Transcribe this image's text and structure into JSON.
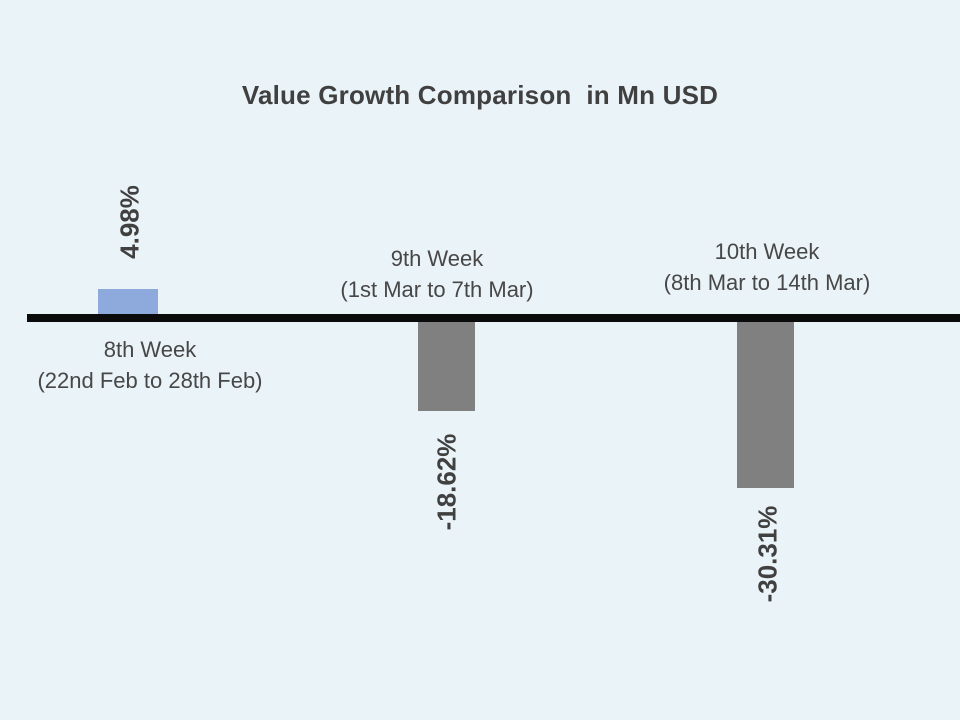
{
  "page": {
    "background_color": "#EAF3F8",
    "text_color": "#404040"
  },
  "chart_data": {
    "type": "bar",
    "title": "Value Growth Comparison  in Mn USD",
    "unit": "%",
    "categories": [
      "8th Week (22nd Feb to 28th Feb)",
      "9th Week (1st Mar to 7th Mar)",
      "10th Week (8th Mar to 14th Mar)"
    ],
    "values": [
      4.98,
      -18.62,
      -30.31
    ],
    "ylim": [
      -35,
      10
    ],
    "grid": false,
    "legend": "none",
    "baseline_color": "#0b0b0b",
    "bars": [
      {
        "name": "8th Week",
        "period": "(22nd Feb to 28th Feb)",
        "value": 4.98,
        "label": "4.98%",
        "color": "#8EA9DB",
        "label_position": "above-bar",
        "category_position": "below-axis"
      },
      {
        "name": "9th Week",
        "period": "(1st Mar to 7th Mar)",
        "value": -18.62,
        "label": "-18.62%",
        "color": "#808080",
        "label_position": "below-bar",
        "category_position": "above-axis"
      },
      {
        "name": "10th Week",
        "period": "(8th Mar to 14th Mar)",
        "value": -30.31,
        "label": "-30.31%",
        "color": "#808080",
        "label_position": "below-bar",
        "category_position": "above-axis"
      }
    ]
  }
}
